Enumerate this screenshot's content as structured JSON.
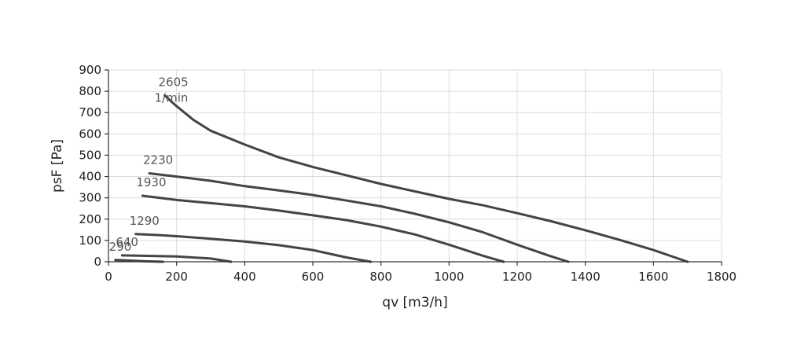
{
  "chart_data": {
    "type": "line",
    "xlabel": "qv [m3/h]",
    "ylabel": "psF [Pa]",
    "xlim": [
      0,
      1800
    ],
    "ylim": [
      0,
      900
    ],
    "xticks": [
      "0",
      "200",
      "400",
      "600",
      "800",
      "1000",
      "1200",
      "1400",
      "1600",
      "1800"
    ],
    "yticks": [
      "0",
      "100",
      "200",
      "300",
      "400",
      "500",
      "600",
      "700",
      "800",
      "900"
    ],
    "grid": true,
    "unit_label": "1/min",
    "series": [
      {
        "name": "2605",
        "x": [
          165,
          200,
          250,
          300,
          400,
          500,
          600,
          700,
          800,
          900,
          1000,
          1100,
          1200,
          1300,
          1400,
          1500,
          1600,
          1700
        ],
        "y": [
          780,
          730,
          665,
          615,
          550,
          490,
          445,
          405,
          365,
          330,
          295,
          265,
          228,
          190,
          148,
          103,
          55,
          0
        ]
      },
      {
        "name": "2230",
        "x": [
          120,
          200,
          300,
          400,
          500,
          600,
          700,
          800,
          900,
          1000,
          1100,
          1200,
          1300,
          1350
        ],
        "y": [
          415,
          400,
          380,
          355,
          335,
          313,
          287,
          260,
          225,
          185,
          138,
          80,
          25,
          0
        ]
      },
      {
        "name": "1930",
        "x": [
          100,
          200,
          300,
          400,
          500,
          600,
          700,
          800,
          900,
          1000,
          1100,
          1160
        ],
        "y": [
          310,
          290,
          275,
          260,
          240,
          218,
          195,
          165,
          128,
          80,
          28,
          0
        ]
      },
      {
        "name": "1290",
        "x": [
          80,
          150,
          200,
          300,
          400,
          500,
          600,
          700,
          770
        ],
        "y": [
          130,
          125,
          120,
          108,
          95,
          78,
          55,
          20,
          0
        ]
      },
      {
        "name": "640",
        "x": [
          40,
          100,
          200,
          300,
          360
        ],
        "y": [
          30,
          28,
          25,
          15,
          0
        ]
      },
      {
        "name": "290",
        "x": [
          20,
          60,
          100,
          160
        ],
        "y": [
          8,
          6,
          3,
          0
        ]
      }
    ]
  }
}
